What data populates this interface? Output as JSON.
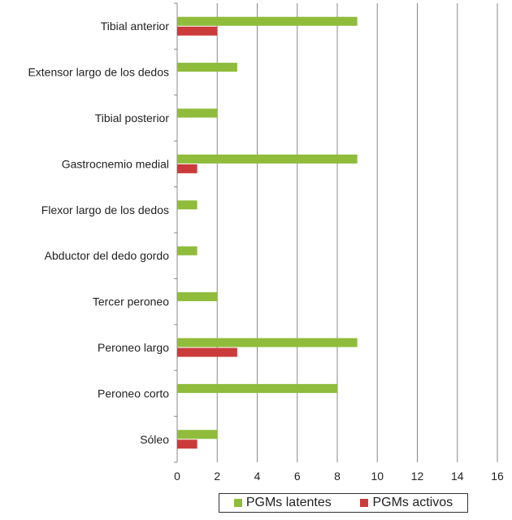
{
  "chart_data": {
    "type": "bar",
    "orientation": "horizontal",
    "categories": [
      "Tibial anterior",
      "Extensor largo de los dedos",
      "Tibial posterior",
      "Gastrocnemio medial",
      "Flexor largo de los dedos",
      "Abductor del dedo gordo",
      "Tercer peroneo",
      "Peroneo largo",
      "Peroneo corto",
      "Sóleo"
    ],
    "series": [
      {
        "name": "PGMs latentes",
        "color": "#8fbc3b",
        "values": [
          9,
          3,
          2,
          9,
          1,
          1,
          2,
          9,
          8,
          2
        ]
      },
      {
        "name": "PGMs activos",
        "color": "#cc3b3b",
        "values": [
          2,
          0,
          0,
          1,
          0,
          0,
          0,
          3,
          0,
          1
        ]
      }
    ],
    "xlim": [
      0,
      16
    ],
    "xticks": [
      "0",
      "2",
      "4",
      "6",
      "8",
      "10",
      "12",
      "14",
      "16"
    ],
    "grid": "vertical",
    "legend_position": "bottom"
  }
}
